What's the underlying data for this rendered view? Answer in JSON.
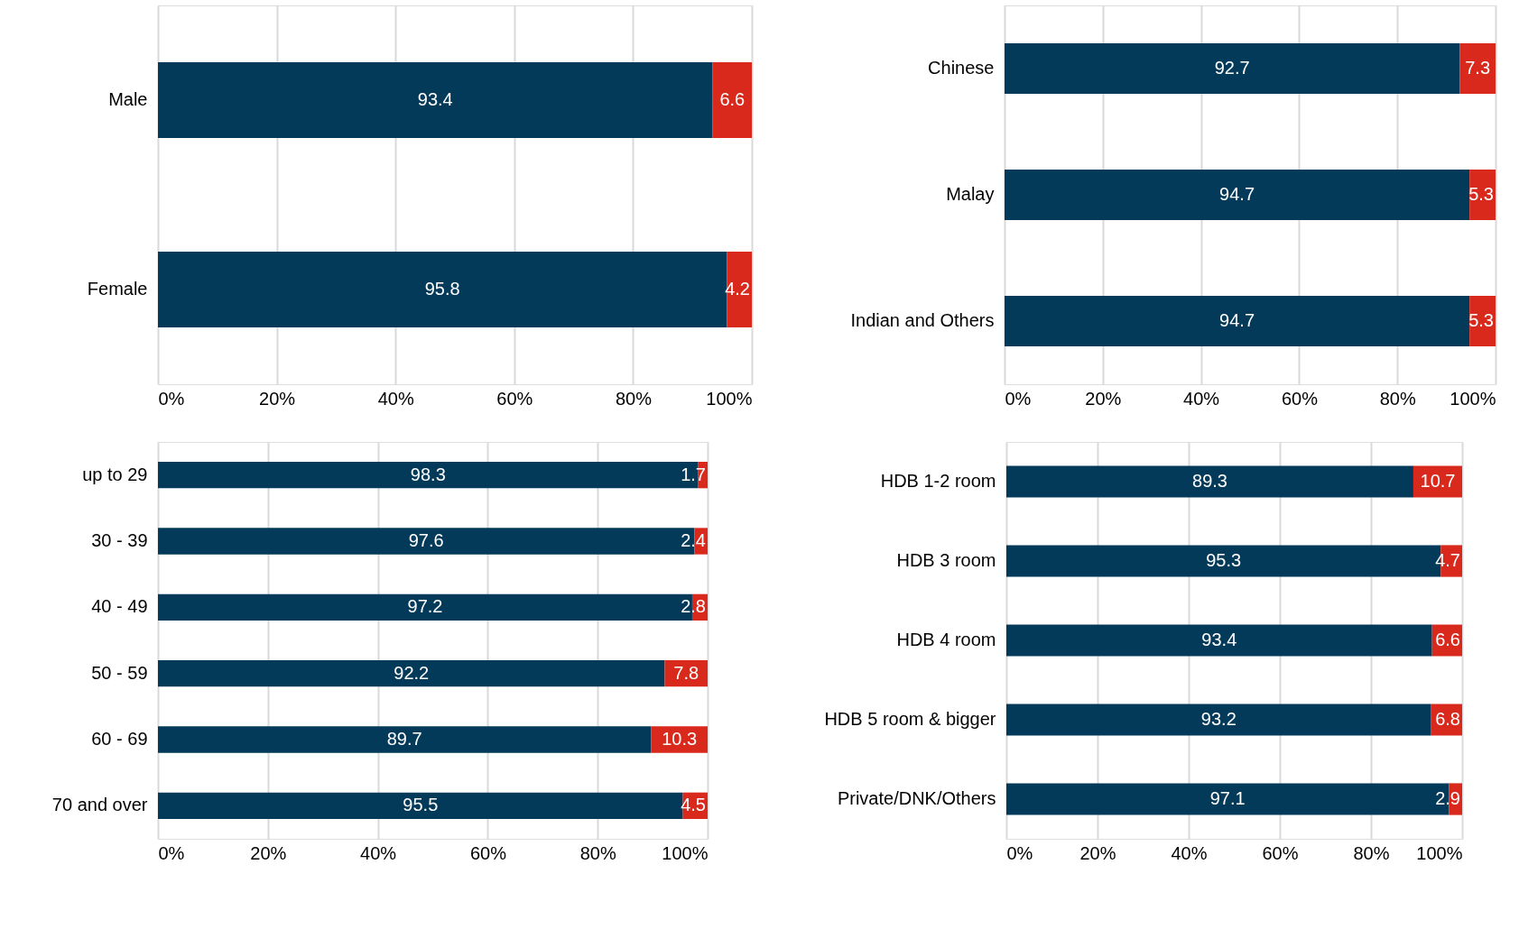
{
  "chart_data": [
    {
      "type": "bar",
      "orientation": "horizontal",
      "stacked": true,
      "categories": [
        "Male",
        "Female"
      ],
      "series": [
        {
          "color": "#033a5a",
          "values": [
            93.4,
            95.8
          ]
        },
        {
          "color": "#d9291c",
          "values": [
            6.6,
            4.2
          ]
        }
      ],
      "xlim": [
        0,
        100
      ],
      "xticks": [
        {
          "value": 0,
          "label": "0%"
        },
        {
          "value": 20,
          "label": "20%"
        },
        {
          "value": 40,
          "label": "40%"
        },
        {
          "value": 60,
          "label": "60%"
        },
        {
          "value": 80,
          "label": "80%"
        },
        {
          "value": 100,
          "label": "100%"
        }
      ],
      "grid": "x",
      "data_labels": true
    },
    {
      "type": "bar",
      "orientation": "horizontal",
      "stacked": true,
      "categories": [
        "Chinese",
        "Malay",
        "Indian and Others"
      ],
      "series": [
        {
          "color": "#033a5a",
          "values": [
            92.7,
            94.7,
            94.7
          ]
        },
        {
          "color": "#d9291c",
          "values": [
            7.3,
            5.3,
            5.3
          ]
        }
      ],
      "xlim": [
        0,
        100
      ],
      "xticks": [
        {
          "value": 0,
          "label": "0%"
        },
        {
          "value": 20,
          "label": "20%"
        },
        {
          "value": 40,
          "label": "40%"
        },
        {
          "value": 60,
          "label": "60%"
        },
        {
          "value": 80,
          "label": "80%"
        },
        {
          "value": 100,
          "label": "100%"
        }
      ],
      "grid": "x",
      "data_labels": true
    },
    {
      "type": "bar",
      "orientation": "horizontal",
      "stacked": true,
      "categories": [
        "up to 29",
        "30 - 39",
        "40 - 49",
        "50 - 59",
        "60 - 69",
        "70 and over"
      ],
      "series": [
        {
          "color": "#033a5a",
          "values": [
            98.3,
            97.6,
            97.2,
            92.2,
            89.7,
            95.5
          ]
        },
        {
          "color": "#d9291c",
          "values": [
            1.7,
            2.4,
            2.8,
            7.8,
            10.3,
            4.5
          ]
        }
      ],
      "xlim": [
        0,
        100
      ],
      "xticks": [
        {
          "value": 0,
          "label": "0%"
        },
        {
          "value": 20,
          "label": "20%"
        },
        {
          "value": 40,
          "label": "40%"
        },
        {
          "value": 60,
          "label": "60%"
        },
        {
          "value": 80,
          "label": "80%"
        },
        {
          "value": 100,
          "label": "100%"
        }
      ],
      "grid": "x",
      "data_labels": true
    },
    {
      "type": "bar",
      "orientation": "horizontal",
      "stacked": true,
      "categories": [
        "HDB 1-2 room",
        "HDB 3 room",
        "HDB 4 room",
        "HDB 5 room & bigger",
        "Private/DNK/Others"
      ],
      "series": [
        {
          "color": "#033a5a",
          "values": [
            89.3,
            95.3,
            93.4,
            93.2,
            97.1
          ]
        },
        {
          "color": "#d9291c",
          "values": [
            10.7,
            4.7,
            6.6,
            6.8,
            2.9
          ]
        }
      ],
      "xlim": [
        0,
        100
      ],
      "xticks": [
        {
          "value": 0,
          "label": "0%"
        },
        {
          "value": 20,
          "label": "20%"
        },
        {
          "value": 40,
          "label": "40%"
        },
        {
          "value": 60,
          "label": "60%"
        },
        {
          "value": 80,
          "label": "80%"
        },
        {
          "value": 100,
          "label": "100%"
        }
      ],
      "grid": "x",
      "data_labels": true
    }
  ]
}
